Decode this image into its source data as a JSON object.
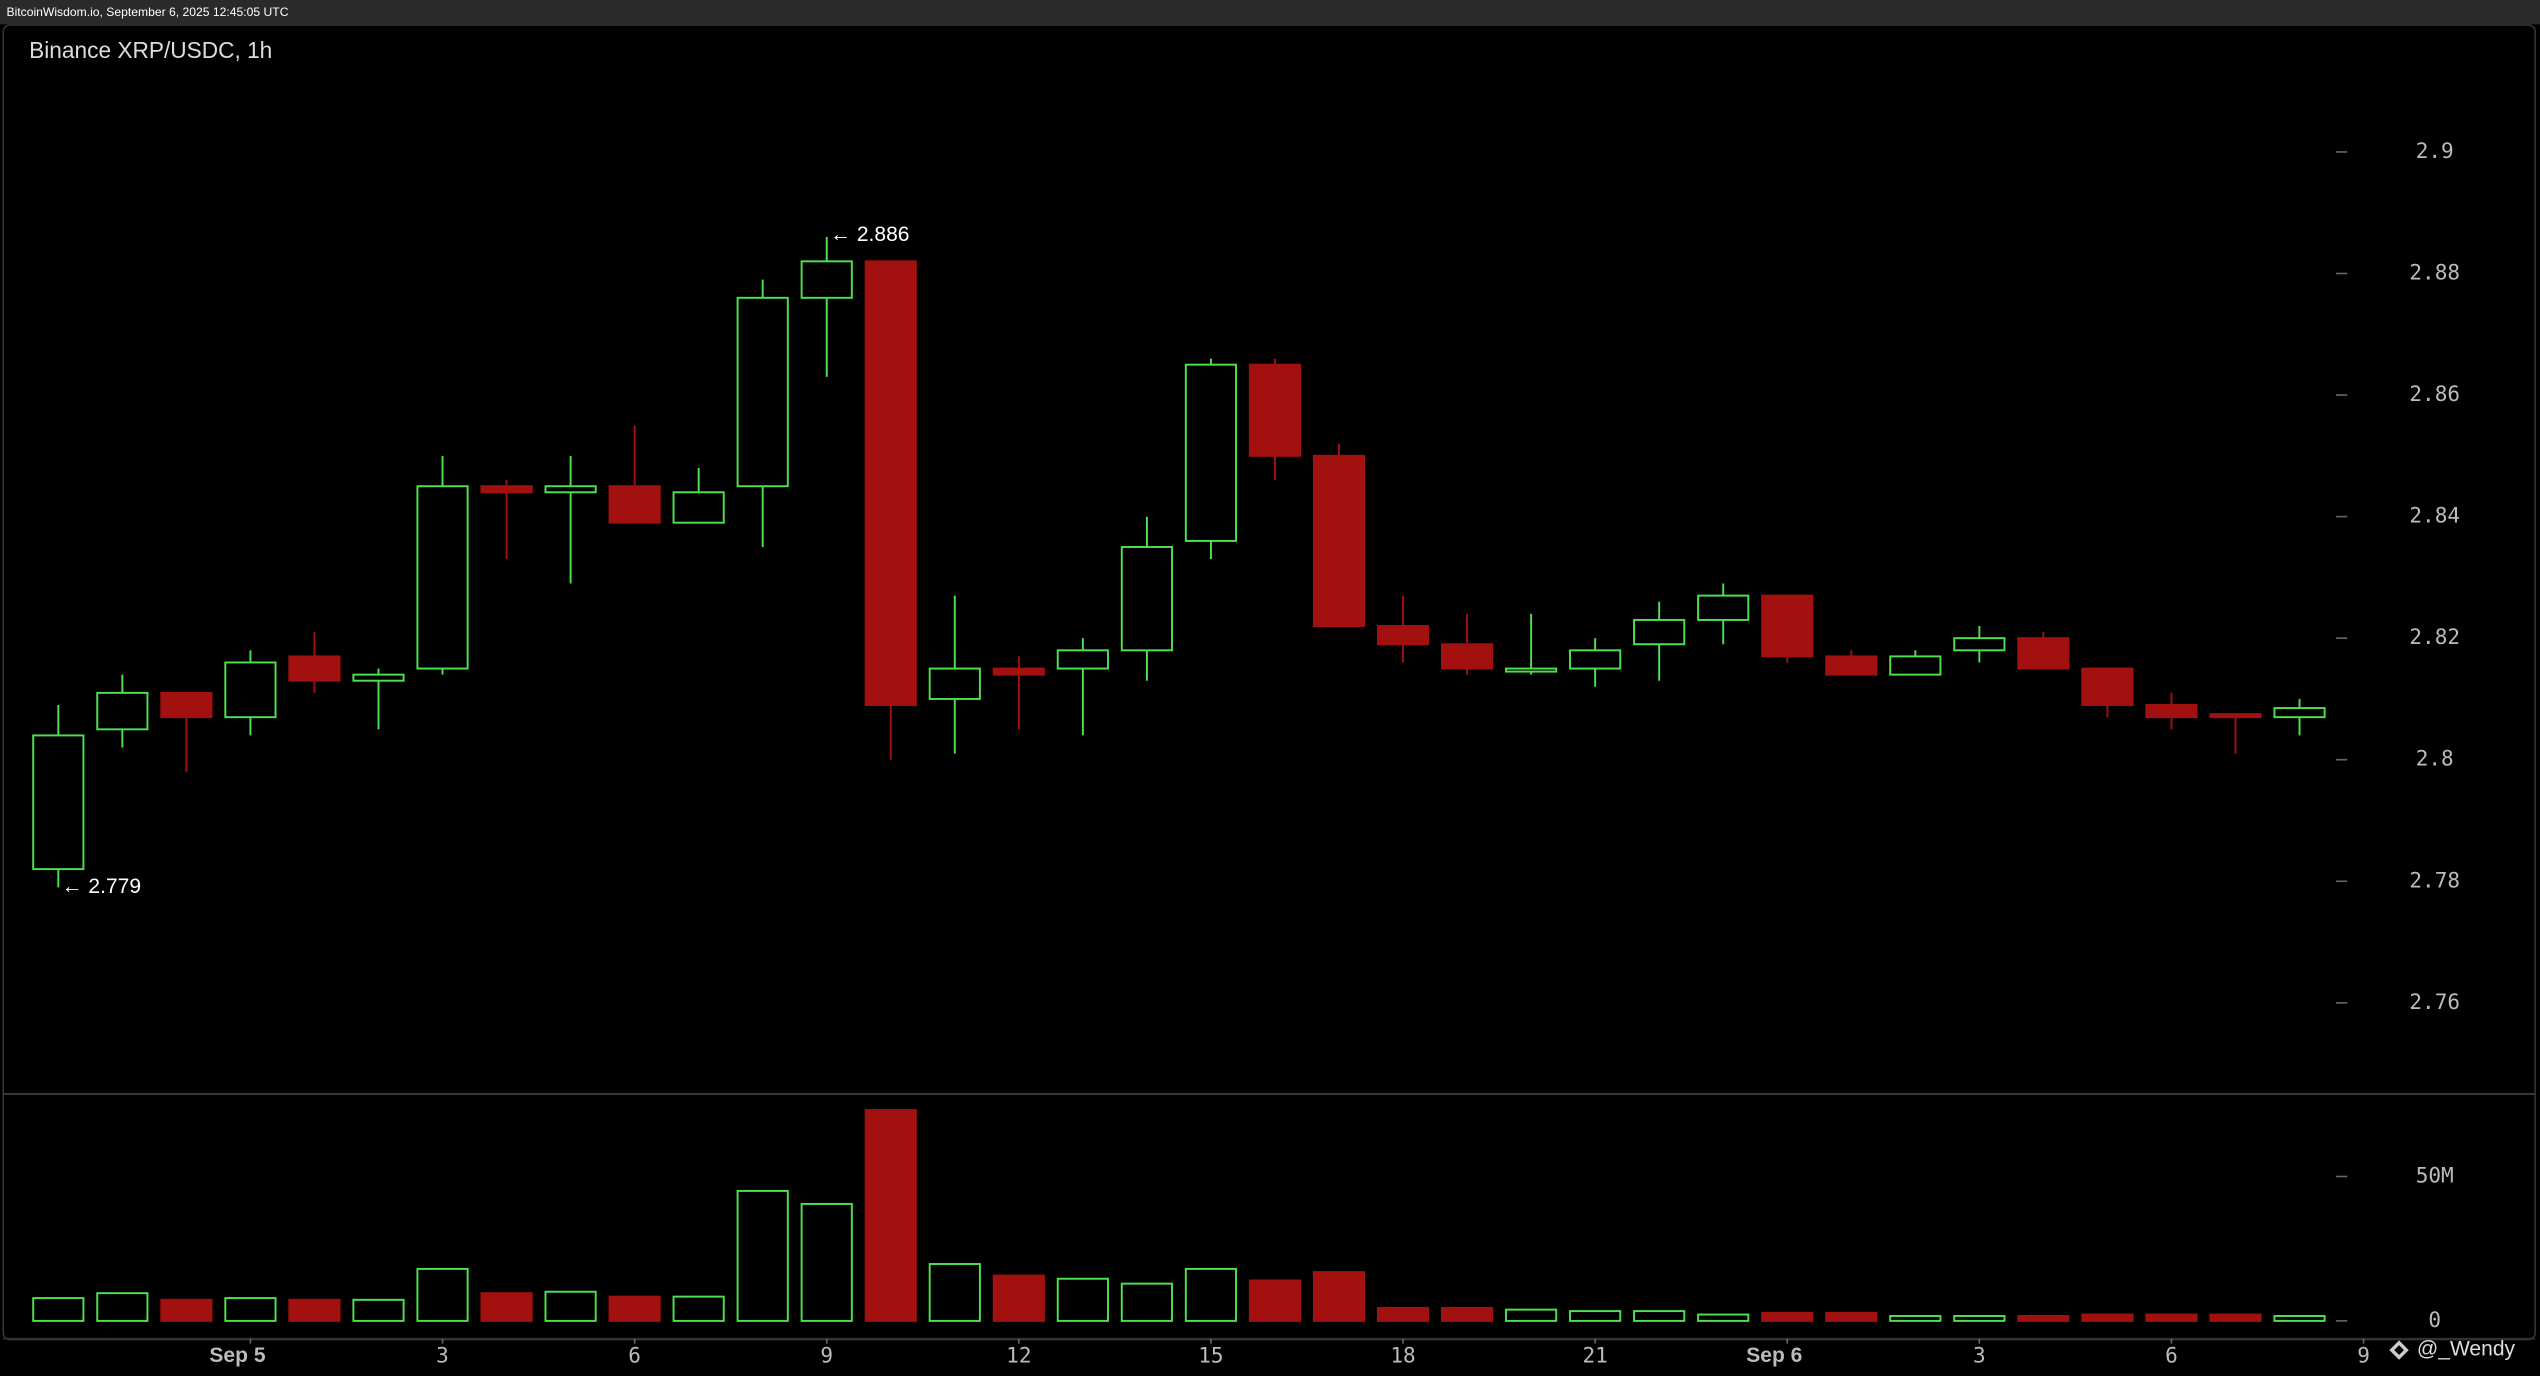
{
  "header": "BitcoinWisdom.io, September 6, 2025 12:45:05 UTC",
  "watermark": "@_Wendy",
  "chart_data": {
    "type": "candlestick",
    "title": "Binance XRP/USDC, 1h",
    "up_color": "#4fe04f",
    "down_color": "#a31010",
    "ylim": [
      2.745,
      2.921
    ],
    "yticks": [
      2.76,
      2.78,
      2.8,
      2.82,
      2.84,
      2.86,
      2.88,
      2.9
    ],
    "volume_ylim": [
      0,
      78000000
    ],
    "volume_yticks": [
      0,
      {
        "value": 50000000,
        "label": "50M"
      }
    ],
    "xticks": [
      {
        "value": 3,
        "label": "Sep 5"
      },
      {
        "value": 6,
        "label": "3"
      },
      {
        "value": 9,
        "label": "6"
      },
      {
        "value": 12,
        "label": "9"
      },
      {
        "value": 15,
        "label": "12"
      },
      {
        "value": 18,
        "label": "15"
      },
      {
        "value": 21,
        "label": "18"
      },
      {
        "value": 24,
        "label": "21"
      },
      {
        "value": 27,
        "label": "Sep 6"
      },
      {
        "value": 30,
        "label": "3"
      },
      {
        "value": 33,
        "label": "6"
      },
      {
        "value": 36,
        "label": "9"
      }
    ],
    "open": [
      2.782,
      2.805,
      2.811,
      2.807,
      2.817,
      2.813,
      2.815,
      2.845,
      2.844,
      2.845,
      2.839,
      2.845,
      2.876,
      2.882,
      2.81,
      2.815,
      2.815,
      2.818,
      2.836,
      2.865,
      2.85,
      2.822,
      2.819,
      2.8145,
      2.815,
      2.819,
      2.823,
      2.827,
      2.817,
      2.814,
      2.818,
      2.82,
      2.815,
      2.809,
      2.8075,
      2.807
    ],
    "high": [
      2.809,
      2.814,
      2.811,
      2.818,
      2.821,
      2.815,
      2.85,
      2.846,
      2.85,
      2.855,
      2.848,
      2.879,
      2.886,
      2.882,
      2.827,
      2.817,
      2.82,
      2.84,
      2.866,
      2.866,
      2.852,
      2.827,
      2.824,
      2.824,
      2.82,
      2.826,
      2.829,
      2.827,
      2.818,
      2.818,
      2.822,
      2.821,
      2.815,
      2.811,
      2.8075,
      2.81
    ],
    "low": [
      2.779,
      2.802,
      2.798,
      2.804,
      2.811,
      2.805,
      2.814,
      2.833,
      2.829,
      2.839,
      2.839,
      2.835,
      2.863,
      2.8,
      2.801,
      2.805,
      2.804,
      2.813,
      2.833,
      2.846,
      2.822,
      2.816,
      2.814,
      2.814,
      2.812,
      2.813,
      2.819,
      2.816,
      2.814,
      2.814,
      2.816,
      2.815,
      2.807,
      2.805,
      2.801,
      2.804
    ],
    "close": [
      2.804,
      2.811,
      2.807,
      2.816,
      2.813,
      2.814,
      2.845,
      2.844,
      2.845,
      2.839,
      2.844,
      2.876,
      2.882,
      2.809,
      2.815,
      2.814,
      2.818,
      2.835,
      2.865,
      2.85,
      2.822,
      2.819,
      2.815,
      2.815,
      2.818,
      2.823,
      2.827,
      2.817,
      2.814,
      2.817,
      2.82,
      2.815,
      2.809,
      2.807,
      2.807,
      2.8085
    ],
    "volume": [
      7900000,
      9600000,
      7300000,
      7900000,
      7300000,
      7300000,
      18000000,
      9600000,
      10100000,
      8400000,
      8400000,
      45000000,
      40500000,
      73000000,
      19700000,
      15700000,
      14600000,
      12900000,
      18000000,
      14000000,
      16900000,
      4500000,
      4500000,
      3900000,
      3400000,
      3400000,
      2200000,
      2800000,
      2800000,
      1700000,
      1700000,
      1700000,
      2200000,
      2200000,
      2200000,
      1700000
    ],
    "annotations": [
      {
        "text": "← 2.886",
        "index": 12,
        "at": "high"
      },
      {
        "text": "← 2.779",
        "index": 0,
        "at": "low"
      }
    ]
  }
}
